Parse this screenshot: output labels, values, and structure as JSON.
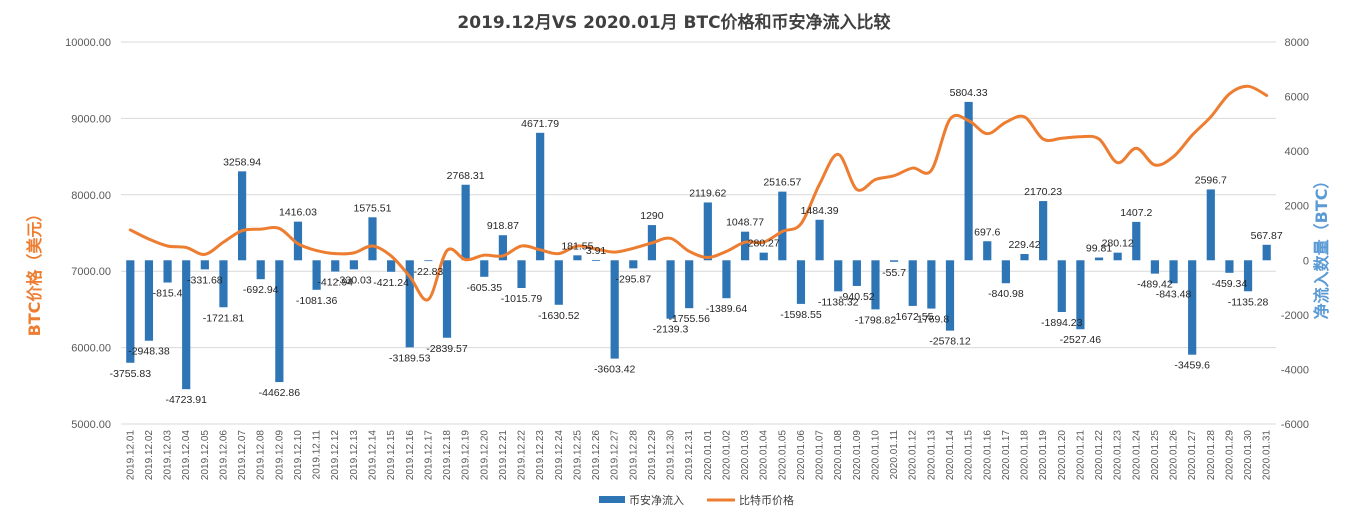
{
  "chart_data": {
    "type": "bar+line",
    "title": "2019.12月VS 2020.01月 BTC价格和币安净流入比较",
    "ylabel_left": "BTC价格（美元）",
    "ylabel_right": "净流入数量（BTC）",
    "ylim_left": [
      5000,
      10000
    ],
    "ylim_right": [
      -6000,
      8000
    ],
    "left_ticks": [
      "5000.00",
      "6000.00",
      "7000.00",
      "8000.00",
      "9000.00",
      "10000.00"
    ],
    "right_ticks": [
      "-6000",
      "-4000",
      "-2000",
      "0",
      "2000",
      "4000",
      "6000",
      "8000"
    ],
    "legend_position": "bottom",
    "grid": true,
    "colors": {
      "bar": "#2E75B6",
      "line": "#ED7D31",
      "grid": "#d9d9d9"
    },
    "categories": [
      "2019.12.01",
      "2019.12.02",
      "2019.12.03",
      "2019.12.04",
      "2019.12.05",
      "2019.12.06",
      "2019.12.07",
      "2019.12.08",
      "2019.12.09",
      "2019.12.10",
      "2019.12.11",
      "2019.12.12",
      "2019.12.13",
      "2019.12.14",
      "2019.12.15",
      "2019.12.16",
      "2019.12.17",
      "2019.12.18",
      "2019.12.19",
      "2019.12.20",
      "2019.12.21",
      "2019.12.22",
      "2019.12.23",
      "2019.12.24",
      "2019.12.25",
      "2019.12.26",
      "2019.12.27",
      "2019.12.28",
      "2019.12.29",
      "2019.12.30",
      "2019.12.31",
      "2020.01.01",
      "2020.01.02",
      "2020.01.03",
      "2020.01.04",
      "2020.01.05",
      "2020.01.06",
      "2020.01.07",
      "2020.01.08",
      "2020.01.09",
      "2020.01.10",
      "2020.01.11",
      "2020.01.12",
      "2020.01.13",
      "2020.01.14",
      "2020.01.15",
      "2020.01.16",
      "2020.01.17",
      "2020.01.18",
      "2020.01.19",
      "2020.01.20",
      "2020.01.21",
      "2020.01.22",
      "2020.01.23",
      "2020.01.24",
      "2020.01.25",
      "2020.01.26",
      "2020.01.27",
      "2020.01.28",
      "2020.01.29",
      "2020.01.30",
      "2020.01.31"
    ],
    "series": [
      {
        "name": "币安净流入",
        "type": "bar",
        "axis": "right",
        "values": [
          -3755.83,
          -2948.38,
          -815.4,
          -4723.91,
          -331.68,
          -1721.81,
          3258.94,
          -692.94,
          -4462.86,
          1416.03,
          -1081.36,
          -412.94,
          -330.03,
          1575.51,
          -421.24,
          -3189.53,
          -22.83,
          -2839.57,
          2768.31,
          -605.35,
          918.87,
          -1015.79,
          4671.79,
          -1630.52,
          181.55,
          3.91,
          -3603.42,
          -295.87,
          1290,
          -2139.3,
          -1755.56,
          2119.62,
          -1389.64,
          1048.77,
          280.27,
          2516.57,
          -1598.55,
          1484.39,
          -1138.32,
          -940.52,
          -1798.82,
          -55.7,
          -1672.55,
          -1769.8,
          -2578.12,
          5804.33,
          697.6,
          -840.98,
          229.42,
          2170.23,
          -1894.23,
          -2527.46,
          99.81,
          280.12,
          1407.2,
          -489.42,
          -843.48,
          -3459.6,
          2596.7,
          -459.34,
          -1135.28,
          567.87
        ],
        "labels": [
          "-3755.83",
          "-2948.38",
          "-815.4",
          "-4723.91",
          "-331.68",
          "-1721.81",
          "3258.94",
          "-692.94",
          "-4462.86",
          "1416.03",
          "-1081.36",
          "-412.94",
          "-330.03",
          "1575.51",
          "-421.24",
          "-3189.53",
          "-22.83",
          "-2839.57",
          "2768.31",
          "-605.35",
          "918.87",
          "-1015.79",
          "4671.79",
          "-1630.52",
          "181.55",
          "3.91",
          "-3603.42",
          "-295.87",
          "1290",
          "-2139.3",
          "-1755.56",
          "2119.62",
          "-1389.64",
          "1048.77",
          "280.27",
          "2516.57",
          "-1598.55",
          "1484.39",
          "-1138.32",
          "-940.52",
          "-1798.82",
          "-55.7",
          "-1672.55",
          "-1769.8",
          "-2578.12",
          "5804.33",
          "697.6",
          "-840.98",
          "229.42",
          "2170.23",
          "-1894.23",
          "-2527.46",
          "99.81",
          "280.12",
          "1407.2",
          "-489.42",
          "-843.48",
          "-3459.6",
          "2596.7",
          "-459.34",
          "-1135.28",
          "567.87"
        ]
      },
      {
        "name": "比特币价格",
        "type": "line",
        "axis": "left",
        "values": [
          7540,
          7420,
          7330,
          7310,
          7220,
          7380,
          7530,
          7550,
          7560,
          7360,
          7270,
          7230,
          7240,
          7330,
          7200,
          6930,
          6630,
          7270,
          7150,
          7210,
          7200,
          7330,
          7280,
          7230,
          7330,
          7290,
          7250,
          7300,
          7370,
          7430,
          7260,
          7180,
          7260,
          7380,
          7380,
          7520,
          7620,
          8140,
          8530,
          8070,
          8200,
          8250,
          8350,
          8320,
          8990,
          8970,
          8800,
          8950,
          9020,
          8730,
          8740,
          8760,
          8730,
          8420,
          8610,
          8390,
          8500,
          8780,
          9020,
          9320,
          9420,
          9300
        ]
      }
    ]
  }
}
